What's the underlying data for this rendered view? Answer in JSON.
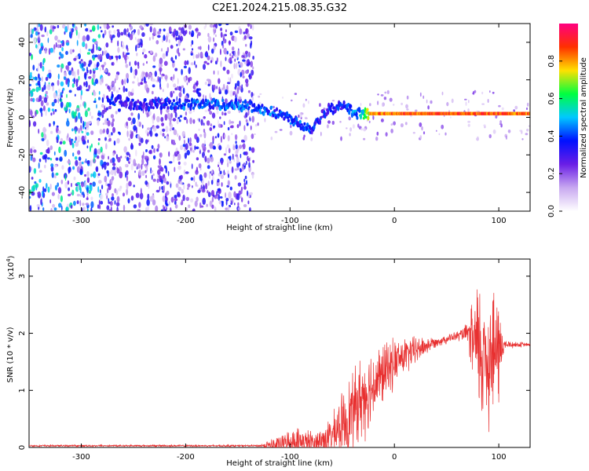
{
  "title": "C2E1.2024.215.08.35.G32",
  "chart_data": [
    {
      "type": "heatmap",
      "xlabel": "Height of straight line (km)",
      "ylabel": "Frequency (Hz)",
      "xlim": [
        -350,
        130
      ],
      "ylim": [
        -50,
        50
      ],
      "xticks": [
        -300,
        -200,
        -100,
        0,
        100
      ],
      "yticks": [
        -40,
        -20,
        0,
        20,
        40
      ],
      "colorbar": {
        "label": "Normalized spectral amplitude",
        "range": [
          0,
          1
        ],
        "ticks": [
          0.0,
          0.2,
          0.4,
          0.6,
          0.8
        ],
        "colormap": [
          "#ffffff",
          "#c8a8f0",
          "#6a1ee6",
          "#0010ff",
          "#00c8ff",
          "#00ff40",
          "#ffe000",
          "#ff3000",
          "#ff0080"
        ]
      },
      "ridge": [
        {
          "x": -275,
          "y": 10,
          "amp": 0.35
        },
        {
          "x": -250,
          "y": 7,
          "amp": 0.3
        },
        {
          "x": -220,
          "y": 7,
          "amp": 0.35
        },
        {
          "x": -200,
          "y": 7,
          "amp": 0.4
        },
        {
          "x": -170,
          "y": 7,
          "amp": 0.4
        },
        {
          "x": -140,
          "y": 6,
          "amp": 0.4
        },
        {
          "x": -125,
          "y": 4,
          "amp": 0.4
        },
        {
          "x": -110,
          "y": 2,
          "amp": 0.4
        },
        {
          "x": -95,
          "y": -2,
          "amp": 0.4
        },
        {
          "x": -80,
          "y": -6,
          "amp": 0.35
        },
        {
          "x": -65,
          "y": 4,
          "amp": 0.35
        },
        {
          "x": -50,
          "y": 6,
          "amp": 0.35
        },
        {
          "x": -35,
          "y": 2,
          "amp": 0.45
        },
        {
          "x": -20,
          "y": 2,
          "amp": 0.8
        },
        {
          "x": 0,
          "y": 2,
          "amp": 0.85
        },
        {
          "x": 30,
          "y": 2,
          "amp": 0.85
        },
        {
          "x": 60,
          "y": 2,
          "amp": 0.85
        },
        {
          "x": 90,
          "y": 2,
          "amp": 0.85
        },
        {
          "x": 130,
          "y": 2,
          "amp": 0.85
        }
      ]
    },
    {
      "type": "line",
      "xlabel": "Height of straight line (km)",
      "ylabel": "SNR (10 * v/v)",
      "y_multiplier": "(x10",
      "y_exponent": "4",
      "xlim": [
        -350,
        130
      ],
      "ylim": [
        0,
        3.3
      ],
      "xticks": [
        -300,
        -200,
        -100,
        0,
        100
      ],
      "yticks": [
        0,
        1,
        2,
        3
      ],
      "color": "#e83030",
      "envelope": [
        {
          "x": -350,
          "base": 0.03,
          "amp": 0.02
        },
        {
          "x": -130,
          "base": 0.03,
          "amp": 0.02
        },
        {
          "x": -110,
          "base": 0.05,
          "amp": 0.2
        },
        {
          "x": -95,
          "base": 0.1,
          "amp": 0.3
        },
        {
          "x": -75,
          "base": 0.08,
          "amp": 0.25
        },
        {
          "x": -60,
          "base": 0.2,
          "amp": 0.4
        },
        {
          "x": -45,
          "base": 0.5,
          "amp": 0.8
        },
        {
          "x": -30,
          "base": 0.9,
          "amp": 0.9
        },
        {
          "x": -15,
          "base": 1.2,
          "amp": 0.7
        },
        {
          "x": 0,
          "base": 1.5,
          "amp": 0.5
        },
        {
          "x": 20,
          "base": 1.7,
          "amp": 0.3
        },
        {
          "x": 40,
          "base": 1.85,
          "amp": 0.1
        },
        {
          "x": 60,
          "base": 1.95,
          "amp": 0.1
        },
        {
          "x": 70,
          "base": 2.0,
          "amp": 0.2
        },
        {
          "x": 80,
          "base": 1.7,
          "amp": 1.5
        },
        {
          "x": 90,
          "base": 1.6,
          "amp": 1.6
        },
        {
          "x": 100,
          "base": 1.7,
          "amp": 1.2
        },
        {
          "x": 105,
          "base": 1.8,
          "amp": 0.1
        },
        {
          "x": 130,
          "base": 1.8,
          "amp": 0.03
        }
      ]
    }
  ]
}
